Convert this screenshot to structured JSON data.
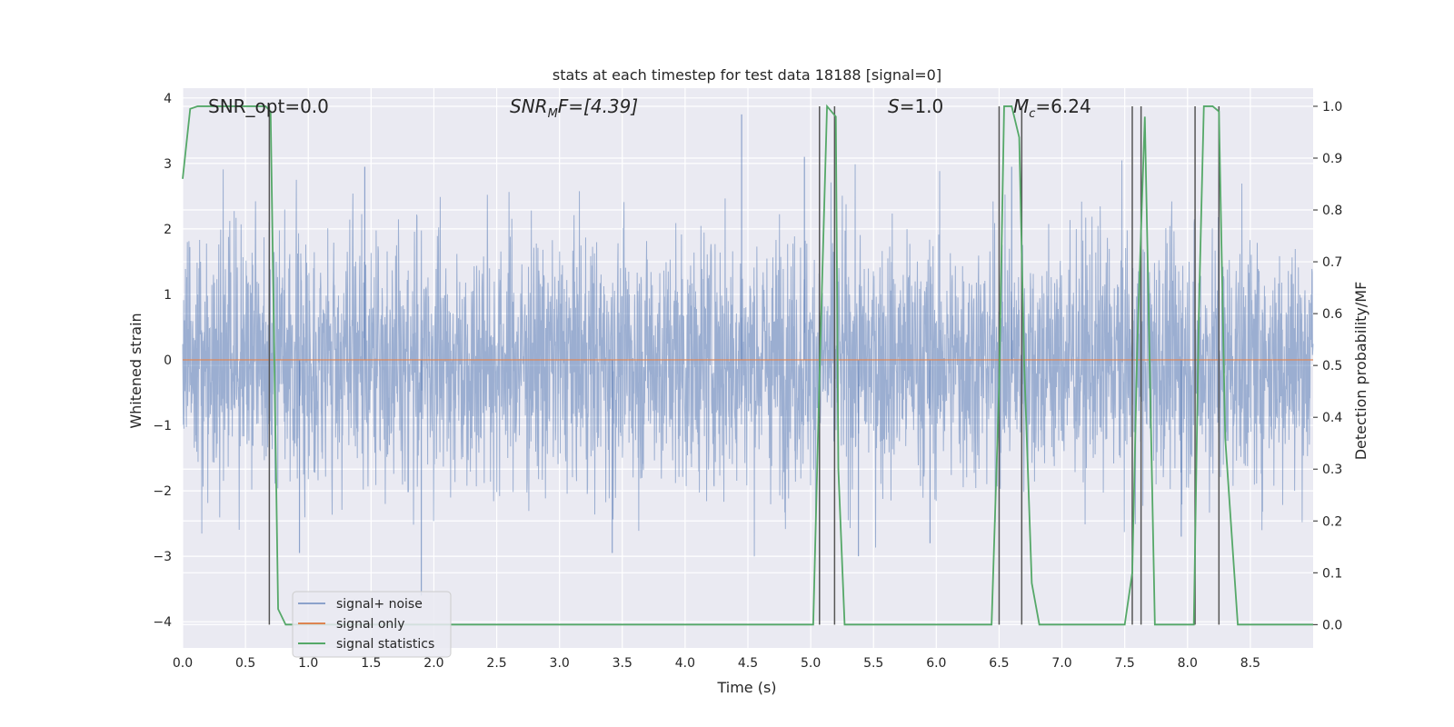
{
  "chart_data": {
    "type": "line",
    "title": "stats at each timestep for test data 18188 [signal=0]",
    "xlabel": "Time (s)",
    "ylabel_left": "Whitened strain",
    "ylabel_right": "Detection probability/MF",
    "xlim": [
      0,
      9.0
    ],
    "ylim_left": [
      -4.4,
      4.15
    ],
    "ylim_right": [
      -0.045,
      1.035
    ],
    "x_ticks": [
      "0.0",
      "0.5",
      "1.0",
      "1.5",
      "2.0",
      "2.5",
      "3.0",
      "3.5",
      "4.0",
      "4.5",
      "5.0",
      "5.5",
      "6.0",
      "6.5",
      "7.0",
      "7.5",
      "8.0",
      "8.5"
    ],
    "y_ticks_left": [
      "4",
      "3",
      "2",
      "1",
      "0",
      "−1",
      "−2",
      "−3",
      "−4"
    ],
    "y_ticks_right": [
      "1.0",
      "0.9",
      "0.8",
      "0.7",
      "0.6",
      "0.5",
      "0.4",
      "0.3",
      "0.2",
      "0.1",
      "0.0"
    ],
    "grid": true,
    "background": "#eaeaf2",
    "annotations": {
      "snr_opt": "SNR_opt=0.0",
      "snr_mf_prefix": "SNR",
      "snr_mf_sub": "M",
      "snr_mf_suffix": "F=[4.39]",
      "s_italic": "S",
      "s_value": "=1.0",
      "mc_italic": "M",
      "mc_sub": "c",
      "mc_value": "=6.24"
    },
    "legend": {
      "placement": "lower-left",
      "entries": [
        "signal+ noise",
        "signal only",
        "signal statistics"
      ]
    },
    "series": [
      {
        "name": "signal+ noise",
        "color": "#4c72b0",
        "opacity": 0.5,
        "kind": "noise",
        "std": 0.95,
        "spikes": [
          {
            "x": 4.45,
            "y": 3.75
          },
          {
            "x": 4.95,
            "y": 3.1
          },
          {
            "x": 1.45,
            "y": 2.95
          },
          {
            "x": 1.9,
            "y": -3.6
          },
          {
            "x": 0.93,
            "y": -2.95
          },
          {
            "x": 3.42,
            "y": -2.95
          },
          {
            "x": 5.38,
            "y": -3.0
          },
          {
            "x": 5.95,
            "y": -2.8
          },
          {
            "x": 7.95,
            "y": -2.7
          },
          {
            "x": 8.25,
            "y": 2.95
          },
          {
            "x": 6.6,
            "y": 2.95
          }
        ]
      },
      {
        "name": "signal only",
        "color": "#dd8452",
        "values_constant": 0.0
      },
      {
        "name": "signal statistics",
        "color": "#55a868",
        "axis": "right",
        "x": [
          0.0,
          0.06,
          0.12,
          0.2,
          0.35,
          0.5,
          0.6,
          0.66,
          0.7,
          0.76,
          0.82,
          0.9,
          1.2,
          2.0,
          3.0,
          4.0,
          5.0,
          5.02,
          5.07,
          5.13,
          5.2,
          5.22,
          5.27,
          5.6,
          6.0,
          6.44,
          6.5,
          6.54,
          6.6,
          6.66,
          6.7,
          6.76,
          6.82,
          6.9,
          7.2,
          7.5,
          7.56,
          7.6,
          7.66,
          7.74,
          7.8,
          8.0,
          8.05,
          8.09,
          8.13,
          8.2,
          8.25,
          8.3,
          8.4,
          8.6,
          9.0
        ],
        "values": [
          0.86,
          0.995,
          1.0,
          1.0,
          1.0,
          1.0,
          1.0,
          1.0,
          0.99,
          0.03,
          0.0,
          0.0,
          0.0,
          0.0,
          0.0,
          0.0,
          0.0,
          0.0,
          0.48,
          1.0,
          0.98,
          0.3,
          0.0,
          0.0,
          0.0,
          0.0,
          0.46,
          1.0,
          1.0,
          0.94,
          0.5,
          0.08,
          0.0,
          0.0,
          0.0,
          0.0,
          0.1,
          0.54,
          0.98,
          0.0,
          0.0,
          0.0,
          0.0,
          0.6,
          1.0,
          1.0,
          0.99,
          0.36,
          0.0,
          0.0,
          0.0
        ]
      }
    ],
    "detection_markers_x": [
      0.69,
      5.07,
      5.19,
      6.5,
      6.68,
      7.56,
      7.63,
      8.06,
      8.25
    ]
  }
}
